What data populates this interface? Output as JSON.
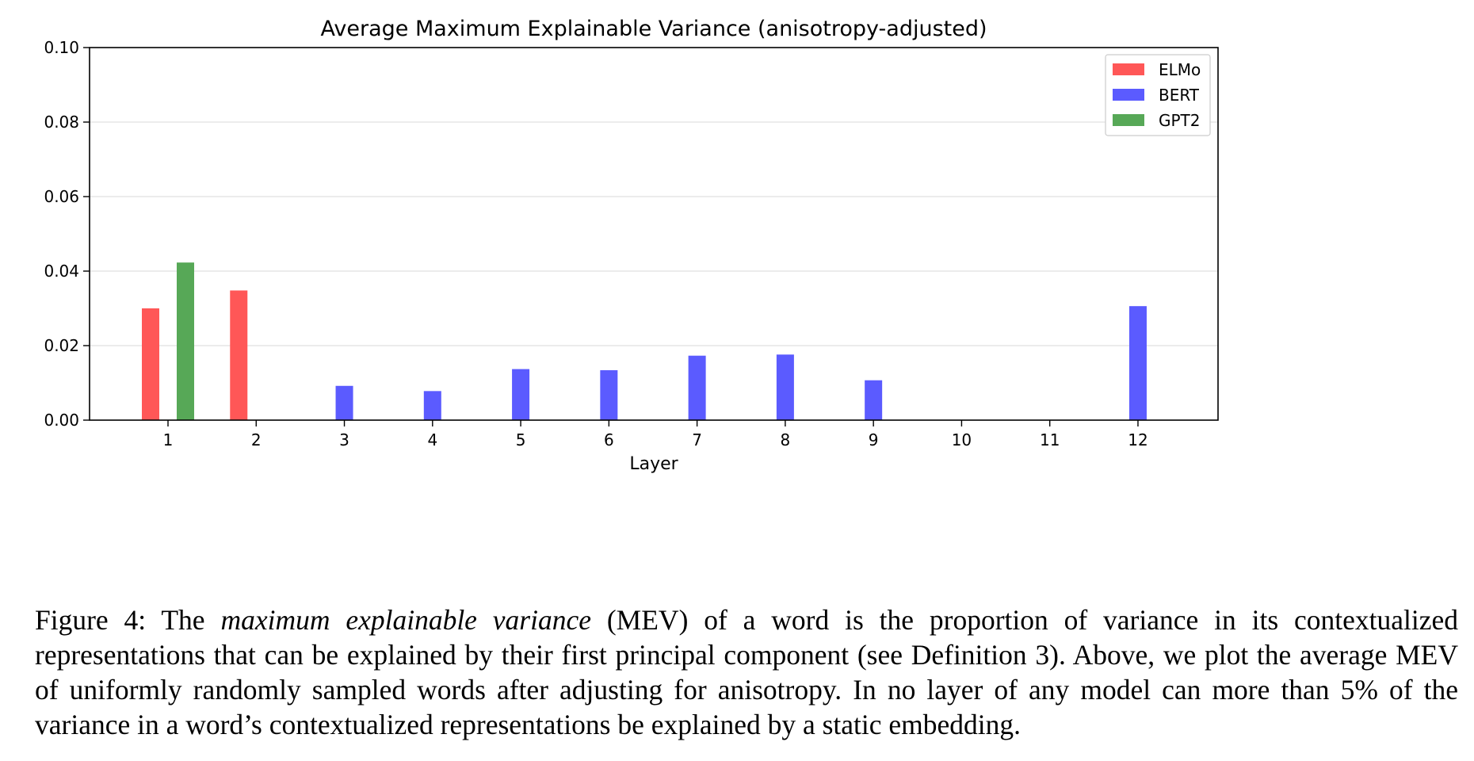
{
  "chart_data": {
    "type": "bar",
    "title": "Average Maximum Explainable Variance (anisotropy-adjusted)",
    "xlabel": "Layer",
    "ylabel": "",
    "categories": [
      "1",
      "2",
      "3",
      "4",
      "5",
      "6",
      "7",
      "8",
      "9",
      "10",
      "11",
      "12"
    ],
    "ylim": [
      0,
      0.1
    ],
    "yticks": [
      "0.00",
      "0.02",
      "0.04",
      "0.06",
      "0.08",
      "0.10"
    ],
    "grid": true,
    "legend_position": "top-right",
    "series": [
      {
        "name": "ELMo",
        "color": "#ff5757",
        "values": [
          0.03,
          0.0348,
          null,
          null,
          null,
          null,
          null,
          null,
          null,
          null,
          null,
          null
        ]
      },
      {
        "name": "BERT",
        "color": "#5b5bff",
        "values": [
          null,
          null,
          0.0092,
          0.0078,
          0.0137,
          0.0134,
          0.0173,
          0.0176,
          0.0107,
          null,
          null,
          0.0306
        ]
      },
      {
        "name": "GPT2",
        "color": "#57a857",
        "values": [
          0.0423,
          null,
          null,
          null,
          null,
          null,
          null,
          null,
          null,
          null,
          null,
          null
        ]
      }
    ]
  },
  "caption": {
    "label": "Figure 4: The ",
    "term": "maximum explainable variance",
    "rest": " (MEV) of a word is the proportion of variance in its contextualized representations that can be explained by their first principal component (see Definition 3). Above, we plot the average MEV of uniformly randomly sampled words after adjusting for anisotropy. In no layer of any model can more than 5% of the variance in a word’s contextualized representations be explained by a static embedding."
  }
}
